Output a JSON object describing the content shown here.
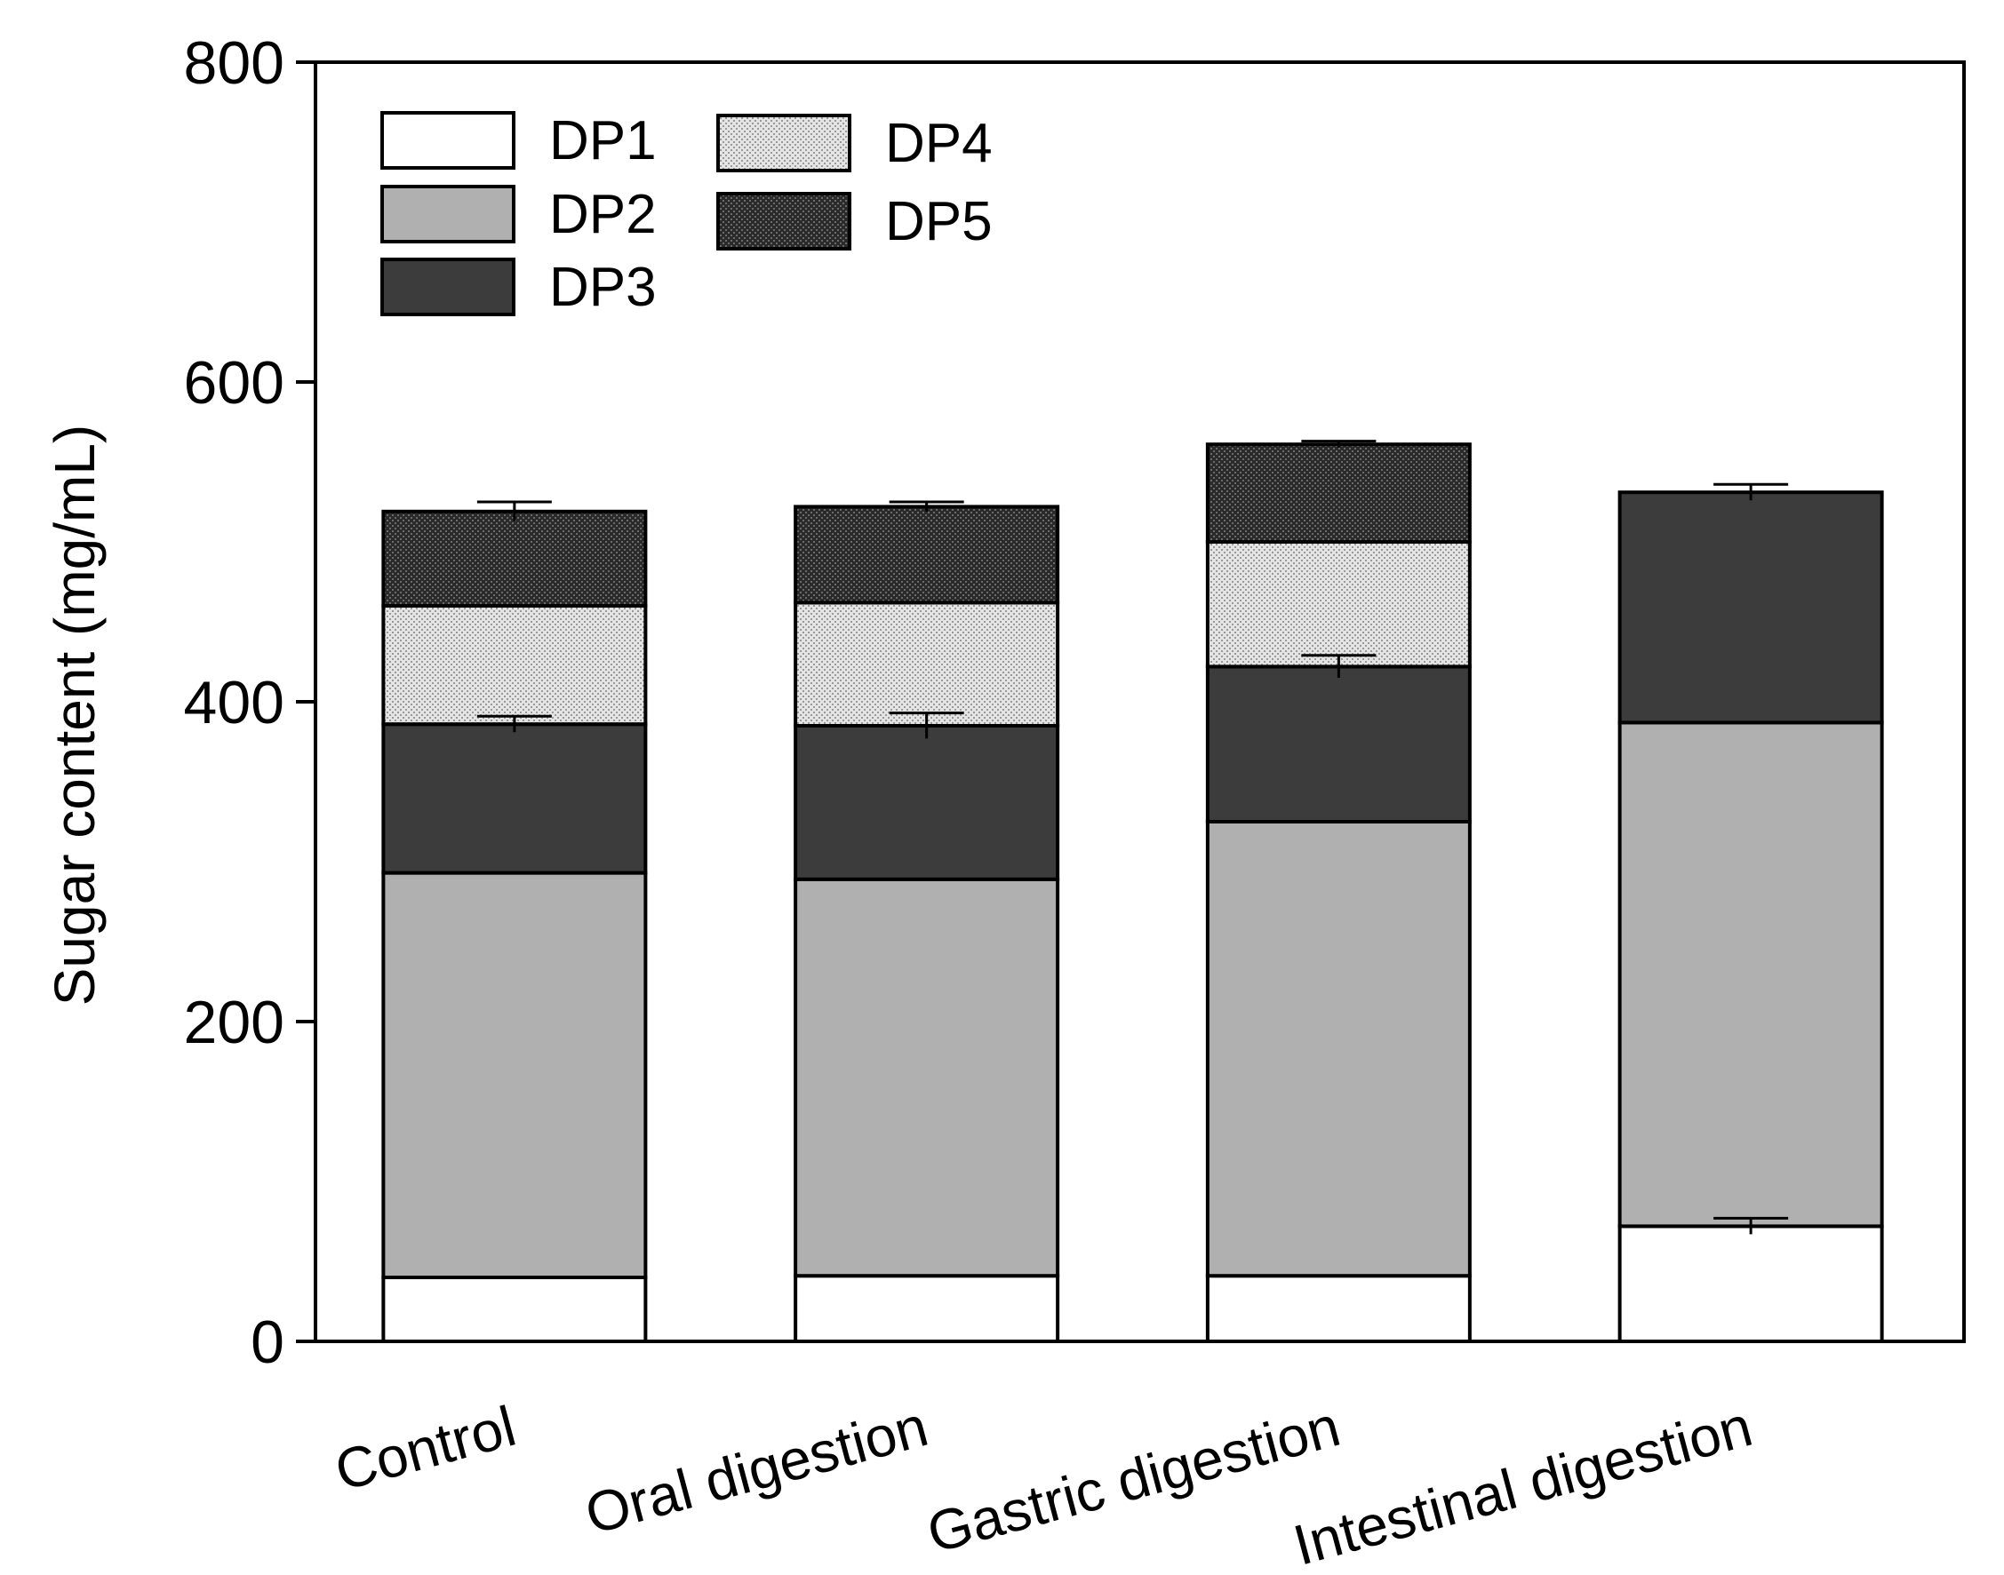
{
  "chart_data": {
    "type": "bar",
    "stacked": true,
    "title": "",
    "xlabel": "",
    "ylabel": "Sugar content (mg/mL)",
    "ylim": [
      0,
      800
    ],
    "yticks": [
      0,
      200,
      400,
      600,
      800
    ],
    "grid": false,
    "legend_position": "top-left",
    "categories": [
      "Control",
      "Oral digestion",
      "Gastric digestion",
      "Intestinal digestion"
    ],
    "series": [
      {
        "name": "DP1",
        "values": [
          40,
          41,
          41,
          72
        ]
      },
      {
        "name": "DP2",
        "values": [
          253,
          248,
          284,
          315
        ]
      },
      {
        "name": "DP3",
        "values": [
          93,
          96,
          97,
          144
        ]
      },
      {
        "name": "DP4",
        "values": [
          74,
          77,
          78,
          0
        ]
      },
      {
        "name": "DP5",
        "values": [
          59,
          60,
          61,
          0
        ]
      }
    ],
    "error_bars": [
      {
        "series": "DP1",
        "values": [
          0,
          0,
          0,
          5
        ]
      },
      {
        "series": "DP3",
        "values": [
          5,
          8,
          7,
          0
        ]
      },
      {
        "series": "DP5",
        "values": [
          6,
          3,
          2,
          5
        ]
      }
    ]
  },
  "styles": {
    "DP1": "#ffffff",
    "DP2": "#b0b0b0",
    "DP3": "#3c3c3c",
    "DP4": "pattern-light-dots",
    "DP5": "pattern-dark-dots"
  }
}
